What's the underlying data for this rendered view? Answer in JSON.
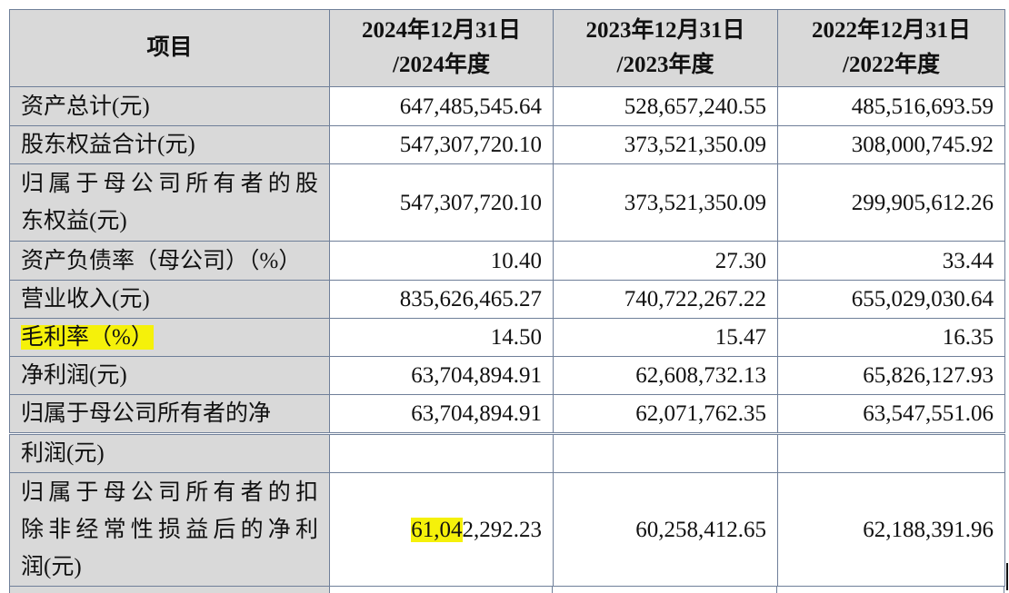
{
  "table": {
    "header": [
      [
        "项目"
      ],
      [
        "2024年12月31日",
        "/2024年度"
      ],
      [
        "2023年12月31日",
        "/2023年度"
      ],
      [
        "2022年12月31日",
        "/2022年度"
      ]
    ],
    "rows": [
      {
        "label": [
          "资产总计(元)"
        ],
        "values": [
          "647,485,545.64",
          "528,657,240.55",
          "485,516,693.59"
        ]
      },
      {
        "label": [
          "股东权益合计(元)"
        ],
        "values": [
          "547,307,720.10",
          "373,521,350.09",
          "308,000,745.92"
        ]
      },
      {
        "label": [
          "归属于母公司所有者的股",
          "东权益(元)"
        ],
        "values": [
          "547,307,720.10",
          "373,521,350.09",
          "299,905,612.26"
        ]
      },
      {
        "label": [
          "资产负债率（母公司）（%）"
        ],
        "values": [
          "10.40",
          "27.30",
          "33.44"
        ]
      },
      {
        "label": [
          "营业收入(元)"
        ],
        "values": [
          "835,626,465.27",
          "740,722,267.22",
          "655,029,030.64"
        ]
      },
      {
        "label": [
          "毛利率（%）"
        ],
        "highlight": true,
        "values": [
          "14.50",
          "15.47",
          "16.35"
        ]
      },
      {
        "label": [
          "净利润(元)"
        ],
        "values": [
          "63,704,894.91",
          "62,608,732.13",
          "65,826,127.93"
        ]
      },
      {
        "label": [
          "归属于母公司所有者的净"
        ],
        "values": [
          "63,704,894.91",
          "62,071,762.35",
          "63,547,551.06"
        ]
      }
    ]
  },
  "table_continued": {
    "rows": [
      {
        "label": [
          "利润(元)"
        ],
        "values": []
      },
      {
        "label": [
          "归属于母公司所有者的扣",
          "除非经常性损益后的净利",
          "润(元)"
        ],
        "values": [
          {
            "runs": [
              {
                "text": "61,04",
                "highlight": true
              },
              {
                "text": "2,292.23"
              }
            ]
          },
          "60,258,412.65",
          "62,188,391.96"
        ]
      }
    ]
  }
}
